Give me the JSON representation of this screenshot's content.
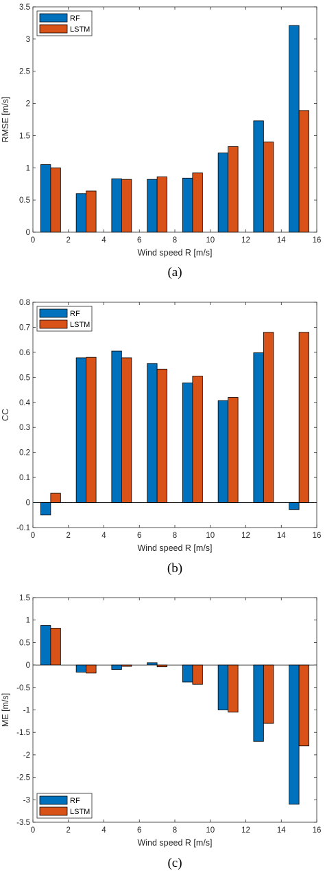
{
  "chart_data": [
    {
      "type": "bar",
      "caption": "(a)",
      "xlabel": "Wind speed R [m/s]",
      "ylabel": "RMSE [m/s]",
      "xlim": [
        0,
        16
      ],
      "ylim": [
        0,
        3.5
      ],
      "xticks": [
        0,
        2,
        4,
        6,
        8,
        10,
        12,
        14,
        16
      ],
      "yticks": [
        0,
        0.5,
        1,
        1.5,
        2,
        2.5,
        3,
        3.5
      ],
      "grid": false,
      "legend_position": "top-left",
      "x": [
        1,
        3,
        5,
        7,
        9,
        11,
        13,
        15
      ],
      "series": [
        {
          "name": "RF",
          "color": "#0072BD",
          "values": [
            1.05,
            0.6,
            0.83,
            0.82,
            0.84,
            1.23,
            1.73,
            3.21
          ]
        },
        {
          "name": "LSTM",
          "color": "#D95319",
          "values": [
            1.0,
            0.64,
            0.82,
            0.86,
            0.92,
            1.33,
            1.4,
            1.89
          ]
        }
      ]
    },
    {
      "type": "bar",
      "caption": "(b)",
      "xlabel": "Wind speed R [m/s]",
      "ylabel": "CC",
      "xlim": [
        0,
        16
      ],
      "ylim": [
        -0.1,
        0.8
      ],
      "xticks": [
        0,
        2,
        4,
        6,
        8,
        10,
        12,
        14,
        16
      ],
      "yticks": [
        -0.1,
        0,
        0.1,
        0.2,
        0.3,
        0.4,
        0.5,
        0.6,
        0.7,
        0.8
      ],
      "grid": false,
      "legend_position": "top-left",
      "x": [
        1,
        3,
        5,
        7,
        9,
        11,
        13,
        15
      ],
      "series": [
        {
          "name": "RF",
          "color": "#0072BD",
          "values": [
            -0.05,
            0.578,
            0.605,
            0.555,
            0.478,
            0.407,
            0.598,
            -0.028
          ]
        },
        {
          "name": "LSTM",
          "color": "#D95319",
          "values": [
            0.037,
            0.58,
            0.578,
            0.533,
            0.505,
            0.42,
            0.68,
            0.68
          ]
        }
      ]
    },
    {
      "type": "bar",
      "caption": "(c)",
      "xlabel": "Wind speed R [m/s]",
      "ylabel": "ME [m/s]",
      "xlim": [
        0,
        16
      ],
      "ylim": [
        -3.5,
        1.5
      ],
      "xticks": [
        0,
        2,
        4,
        6,
        8,
        10,
        12,
        14,
        16
      ],
      "yticks": [
        -3.5,
        -3,
        -2.5,
        -2,
        -1.5,
        -1,
        -0.5,
        0,
        0.5,
        1,
        1.5
      ],
      "grid": false,
      "legend_position": "bottom-left",
      "x": [
        1,
        3,
        5,
        7,
        9,
        11,
        13,
        15
      ],
      "series": [
        {
          "name": "RF",
          "color": "#0072BD",
          "values": [
            0.88,
            -0.16,
            -0.1,
            0.05,
            -0.38,
            -1.0,
            -1.7,
            -3.1
          ]
        },
        {
          "name": "LSTM",
          "color": "#D95319",
          "values": [
            0.82,
            -0.18,
            -0.03,
            -0.04,
            -0.43,
            -1.05,
            -1.3,
            -1.8
          ]
        }
      ]
    }
  ]
}
